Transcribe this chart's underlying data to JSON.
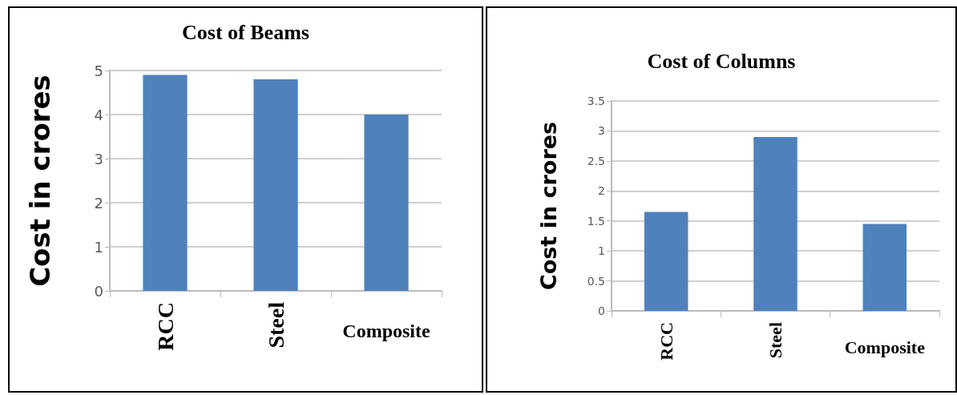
{
  "chart_data": [
    {
      "type": "bar",
      "title": "Cost of Beams",
      "ylabel": "Cost in crores",
      "categories": [
        "RCC",
        "Steel",
        "Composite"
      ],
      "values": [
        4.9,
        4.8,
        4.0
      ],
      "color": "#4f81bd",
      "ylim": [
        0,
        5
      ],
      "yticks": [
        0,
        1,
        2,
        3,
        4,
        5
      ],
      "grid": "y"
    },
    {
      "type": "bar",
      "title": "Cost of Columns",
      "ylabel": "Cost in crores",
      "categories": [
        "RCC",
        "Steel",
        "Composite"
      ],
      "values": [
        1.65,
        2.9,
        1.45
      ],
      "color": "#4f81bd",
      "ylim": [
        0,
        3.5
      ],
      "yticks": [
        0,
        0.5,
        1,
        1.5,
        2,
        2.5,
        3,
        3.5
      ],
      "grid": "y"
    }
  ]
}
